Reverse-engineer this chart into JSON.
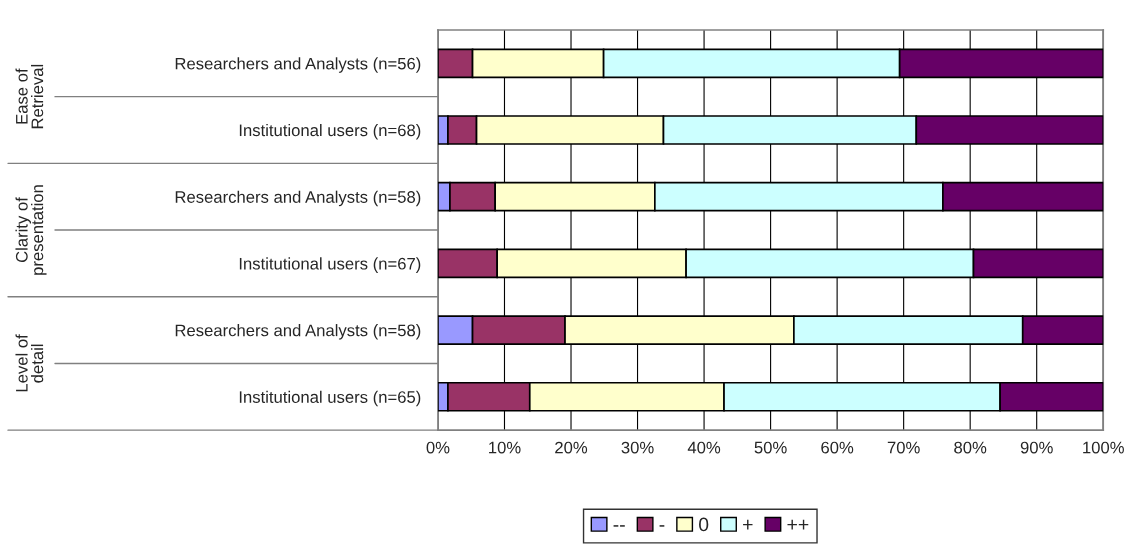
{
  "chart_data": {
    "type": "bar",
    "orientation": "horizontal",
    "stacked": true,
    "categories": [
      "Researchers and Analysts (n=56)",
      "Institutional users (n=68)",
      "Researchers and Analysts (n=58)",
      "Institutional users (n=67)",
      "Researchers and Analysts (n=58)",
      "Institutional users (n=65)"
    ],
    "annotations": [
      "Ease of Retrieval",
      "Clarity of presentation",
      "Level of detail"
    ],
    "series": [
      {
        "name": "--",
        "color": "#9999ff",
        "values": [
          0,
          1.5,
          1.8,
          0,
          5.2,
          1.5
        ]
      },
      {
        "name": "-",
        "color": "#993366",
        "values": [
          5.2,
          4.3,
          6.8,
          8.9,
          13.9,
          12.3
        ]
      },
      {
        "name": "0",
        "color": "#ffffcc",
        "values": [
          19.7,
          28.1,
          24.0,
          28.4,
          34.4,
          29.2
        ]
      },
      {
        "name": "+",
        "color": "#ccffff",
        "values": [
          44.5,
          38.0,
          43.3,
          43.2,
          34.4,
          41.5
        ]
      },
      {
        "name": "++",
        "color": "#660066",
        "values": [
          30.6,
          28.1,
          24.1,
          19.5,
          12.1,
          15.5
        ]
      }
    ],
    "xlim": [
      0,
      100
    ],
    "xticks": [
      {
        "value": 0,
        "label": "0%"
      },
      {
        "value": 10,
        "label": "10%"
      },
      {
        "value": 20,
        "label": "20%"
      },
      {
        "value": 30,
        "label": "30%"
      },
      {
        "value": 40,
        "label": "40%"
      },
      {
        "value": 50,
        "label": "50%"
      },
      {
        "value": 60,
        "label": "60%"
      },
      {
        "value": 70,
        "label": "70%"
      },
      {
        "value": 80,
        "label": "80%"
      },
      {
        "value": 90,
        "label": "90%"
      },
      {
        "value": 100,
        "label": "100%"
      }
    ],
    "grid": "x",
    "legend": "bottom"
  }
}
